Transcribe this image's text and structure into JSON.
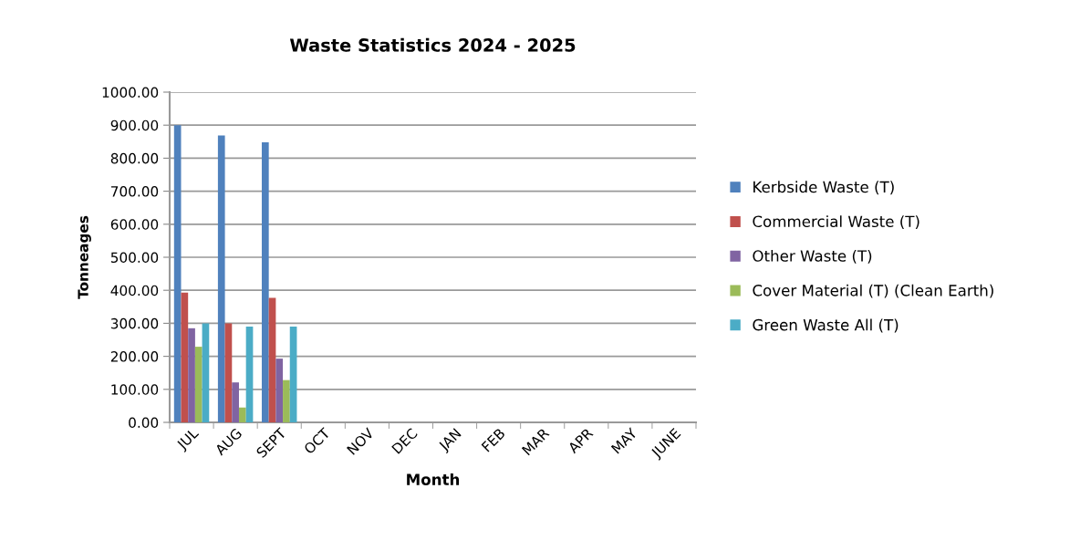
{
  "chart_data": {
    "type": "bar",
    "title": "Waste Statistics 2024 - 2025",
    "xlabel": "Month",
    "ylabel": "Tonneages",
    "categories": [
      "JUL",
      "AUG",
      "SEPT",
      "OCT",
      "NOV",
      "DEC",
      "JAN",
      "FEB",
      "MAR",
      "APR",
      "MAY",
      "JUNE"
    ],
    "series": [
      {
        "name": "Kerbside Waste (T)",
        "color": "#4f81bd",
        "values": [
          900,
          869,
          848,
          null,
          null,
          null,
          null,
          null,
          null,
          null,
          null,
          null
        ]
      },
      {
        "name": "Commercial Waste (T)",
        "color": "#c0504d",
        "values": [
          393,
          300,
          377,
          null,
          null,
          null,
          null,
          null,
          null,
          null,
          null,
          null
        ]
      },
      {
        "name": "Other Waste (T)",
        "color": "#8064a2",
        "values": [
          285,
          121,
          193,
          null,
          null,
          null,
          null,
          null,
          null,
          null,
          null,
          null
        ]
      },
      {
        "name": "Cover Material (T) (Clean Earth)",
        "color": "#9bbb59",
        "values": [
          229,
          45,
          128,
          null,
          null,
          null,
          null,
          null,
          null,
          null,
          null,
          null
        ]
      },
      {
        "name": "Green Waste All (T)",
        "color": "#4bacc6",
        "values": [
          300,
          290,
          290,
          null,
          null,
          null,
          null,
          null,
          null,
          null,
          null,
          null
        ]
      }
    ],
    "ylim": [
      0,
      1000
    ],
    "yticks": [
      {
        "value": 0,
        "label": "0.00"
      },
      {
        "value": 100,
        "label": "100.00"
      },
      {
        "value": 200,
        "label": "200.00"
      },
      {
        "value": 300,
        "label": "300.00"
      },
      {
        "value": 400,
        "label": "400.00"
      },
      {
        "value": 500,
        "label": "500.00"
      },
      {
        "value": 600,
        "label": "600.00"
      },
      {
        "value": 700,
        "label": "700.00"
      },
      {
        "value": 800,
        "label": "800.00"
      },
      {
        "value": 900,
        "label": "900.00"
      },
      {
        "value": 1000,
        "label": "1000.00"
      }
    ],
    "grid": "y",
    "legend": "right"
  }
}
